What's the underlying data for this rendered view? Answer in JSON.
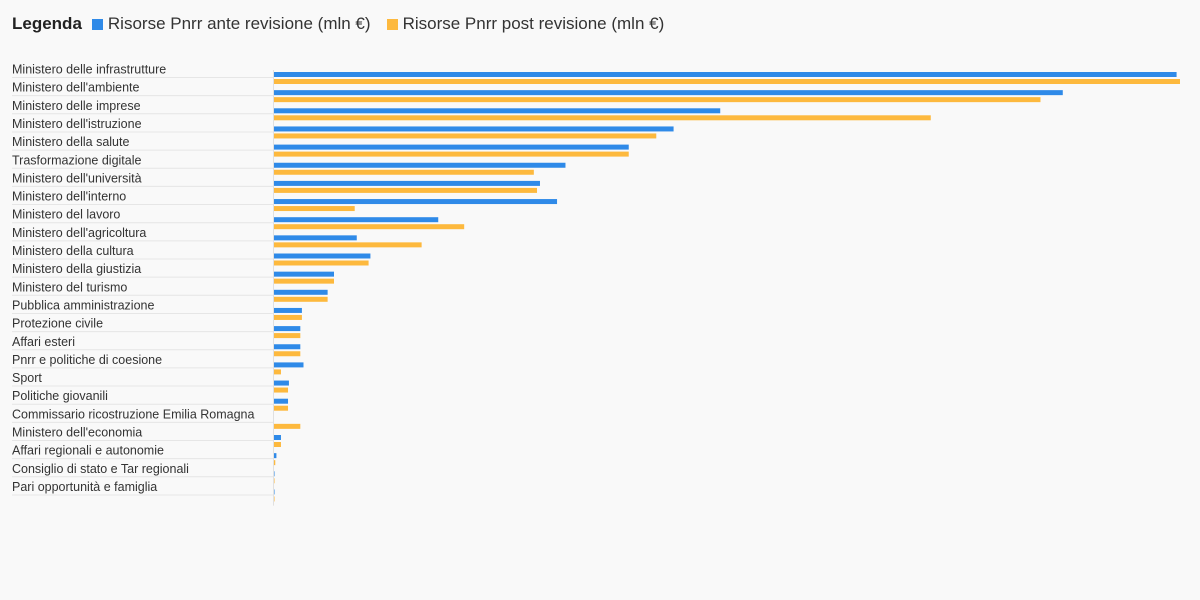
{
  "legend": {
    "title": "Legenda"
  },
  "chart_data": {
    "type": "bar",
    "orientation": "horizontal",
    "title": "",
    "xlabel": "",
    "ylabel": "",
    "legend_placement": "top-left",
    "grid": false,
    "categories": [
      "Ministero delle infrastrutture",
      "Ministero dell'ambiente",
      "Ministero delle imprese",
      "Ministero dell'istruzione",
      "Ministero della salute",
      "Trasformazione digitale",
      "Ministero dell'università",
      "Ministero dell'interno",
      "Ministero del lavoro",
      "Ministero dell'agricoltura",
      "Ministero della cultura",
      "Ministero della giustizia",
      "Ministero del turismo",
      "Pubblica amministrazione",
      "Protezione civile",
      "Affari esteri",
      "Pnrr e politiche di coesione",
      "Sport",
      "Politiche giovanili",
      "Commissario ricostruzione Emilia Romagna",
      "Ministero dell'economia",
      "Affari regionali e autonomie",
      "Consiglio di stato e Tar regionali",
      "Pari opportunità e famiglia"
    ],
    "series": [
      {
        "name": "Risorse Pnrr ante revisione (mln €)",
        "color": "#2f8ae8",
        "values": [
          39700,
          34700,
          19650,
          17600,
          15630,
          12850,
          11730,
          12480,
          7260,
          3680,
          4280,
          2680,
          2400,
          1270,
          1200,
          1200,
          1340,
          700,
          660,
          0,
          350,
          150,
          50,
          20
        ]
      },
      {
        "name": "Risorse Pnrr post revisione (mln €)",
        "color": "#fdb93e",
        "values": [
          39850,
          33720,
          28900,
          16840,
          15630,
          11460,
          11600,
          3590,
          8400,
          6530,
          4200,
          2680,
          2400,
          1270,
          1200,
          1200,
          350,
          660,
          660,
          1200,
          350,
          100,
          50,
          20
        ]
      }
    ]
  }
}
